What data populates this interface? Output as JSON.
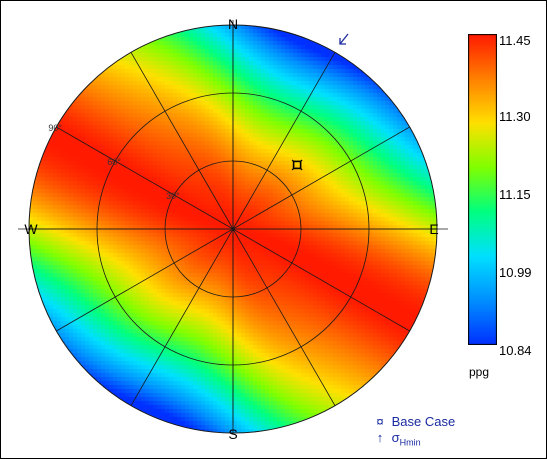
{
  "chart_data": {
    "type": "heatmap",
    "subtype": "polar-stereonet",
    "title": "",
    "directions": {
      "north": "N",
      "east": "E",
      "south": "S",
      "west": "W"
    },
    "inclination_rings": [
      {
        "value": 30,
        "label": "30°"
      },
      {
        "value": 60,
        "label": "60°"
      },
      {
        "value": 90,
        "label": "90°"
      }
    ],
    "radial_spokes_deg": [
      0,
      30,
      60,
      90,
      120,
      150,
      180,
      210,
      240,
      270,
      300,
      330
    ],
    "colorbar": {
      "unit": "ppg",
      "min": 10.84,
      "max": 11.45,
      "ticks": [
        "11.45",
        "11.30",
        "11.15",
        "10.99",
        "10.84"
      ],
      "colors_high_to_low": [
        "#ff1a00",
        "#ff8000",
        "#ffe000",
        "#80ff00",
        "#00ff80",
        "#00e0ff",
        "#0090ff",
        "#0030ff"
      ]
    },
    "field": {
      "description_value_min_axis_azimuth_deg": 30,
      "value_at_center": 11.45,
      "value_at_rim_along_min_axis": 10.84
    },
    "base_case": {
      "azimuth_deg": 45,
      "inclination_deg": 40
    },
    "shmin_azimuth_deg": 45,
    "legend": {
      "base_case_symbol": "¤",
      "base_case_label": "Base Case",
      "shmin_symbol": "↑",
      "shmin_label_main": "σ",
      "shmin_label_sub": "Hmin"
    },
    "colors": {
      "grid": "#1a1a1a",
      "legend_text": "#1a2aa0",
      "arrow": "#1a2aa0"
    }
  }
}
